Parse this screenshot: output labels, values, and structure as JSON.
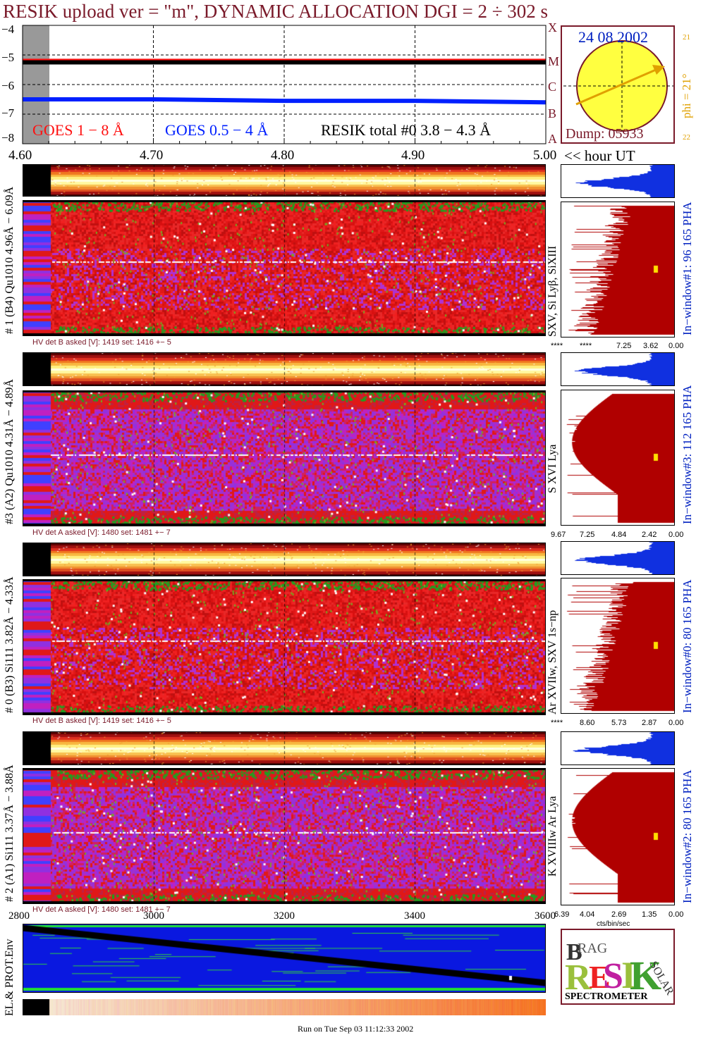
{
  "title": "RESIK upload ver = \"m\", DYNAMIC ALLOCATION  DGI =   2 ÷ 302 s",
  "goes": {
    "legend_red": "GOES 1 − 8 Å",
    "legend_blue": "GOES 0.5 − 4 Å",
    "legend_black": "RESIK total #0  3.8 − 4.3 Å",
    "y_ticks": [
      "−4",
      "−5",
      "−6",
      "−7",
      "−8"
    ],
    "x_ticks": [
      "4.60",
      "4.70",
      "4.80",
      "4.90",
      "5.00"
    ],
    "x_unit": "<< hour UT",
    "right_letters": [
      "X",
      "M",
      "C",
      "B",
      "A"
    ]
  },
  "sun": {
    "date": "24 08 2002",
    "dump": "Dump: 05933",
    "phi": "phi = 21°",
    "phi_top": "21",
    "phi_bottom": "22"
  },
  "colors": {
    "goes_red": "#ff1010",
    "goes_blue": "#0020ff",
    "resik_black": "#000000",
    "label_dark_red": "#7a1a2a",
    "pha_blue": "#1030e0",
    "hist_fill": "#b00000",
    "sun_fill": "#ffff40",
    "sun_arrow": "#e0a000"
  },
  "channels": [
    {
      "id": "d1",
      "left_label": "# 1 (B4) Qu1010 4.96Å − 6.09Å",
      "line_label": "SXV, Si Lyβ, SiXIII",
      "window_label": "In−window#1:  96 165  PHA",
      "hv": "HV det B asked [V]:  1419 set:  1416 +−   5",
      "hist_ticks": [
        "****",
        "****",
        "7.25",
        "3.62",
        "0.00"
      ],
      "theme": "red"
    },
    {
      "id": "d3",
      "left_label": "#3 (A2) Qu1010  4.31Å − 4.89Å",
      "line_label": "S XVI Lya",
      "window_label": "In−window#3:  112 165  PHA",
      "hv": "HV det A asked [V]:  1480 set:  1481 +−   7",
      "hist_ticks": [
        "9.67",
        "7.25",
        "4.84",
        "2.42",
        "0.00"
      ],
      "theme": "purple"
    },
    {
      "id": "d0",
      "left_label": "# 0 (B3) Si111  3.82Å − 4.33Å",
      "line_label": "Ar XVIIw, SXV 1s−np",
      "window_label": "In−window#0:  80 165  PHA",
      "hv": "HV det B asked [V]:  1419 set:  1416 +−   5",
      "hist_ticks": [
        "****",
        "8.60",
        "5.73",
        "2.87",
        "0.00"
      ],
      "theme": "red"
    },
    {
      "id": "d2",
      "left_label": "# 2 (A1) Si111  3.37Å − 3.88Å",
      "line_label": "K XVIIIw  Ar Lya",
      "window_label": "In−window#2:  80 165  PHA",
      "hv": "HV det A asked [V]:  1480 set:  1481 +−   7",
      "hist_ticks": [
        "6.39",
        "4.04",
        "2.69",
        "1.35",
        "0.00"
      ],
      "hist_unit": "cts/bin/sec",
      "theme": "purple"
    }
  ],
  "bottom": {
    "x_ticks": [
      "2800",
      "3000",
      "3200",
      "3400",
      "3600"
    ],
    "left_label": "EL.& PROT.Env"
  },
  "logo": {
    "letters": "BRAGG RESIK SOLAR",
    "word": "SPECTROMETER"
  },
  "footer": "Run on Tue Sep 03 11:12:33 2002",
  "chart_data": {
    "type": "line",
    "title": "RESIK upload ver = \"m\", DYNAMIC ALLOCATION  DGI =   2 ÷ 302 s",
    "xlabel": "<< hour UT",
    "x": [
      4.6,
      4.7,
      4.8,
      4.9,
      5.0
    ],
    "xlim": [
      4.6,
      5.0
    ],
    "ylim": [
      -8,
      -4
    ],
    "series": [
      {
        "name": "GOES 1 − 8 Å",
        "color": "#ff1010",
        "values": [
          -5.2,
          -5.2,
          -5.2,
          -5.2,
          -5.2
        ]
      },
      {
        "name": "GOES 0.5 − 4 Å",
        "color": "#0020ff",
        "values": [
          -6.5,
          -6.5,
          -6.55,
          -6.55,
          -6.6
        ]
      },
      {
        "name": "RESIK total #0  3.8 − 4.3 Å",
        "color": "#000000",
        "values": [
          -5.25,
          -5.25,
          -5.25,
          -5.25,
          -5.25
        ]
      }
    ]
  }
}
